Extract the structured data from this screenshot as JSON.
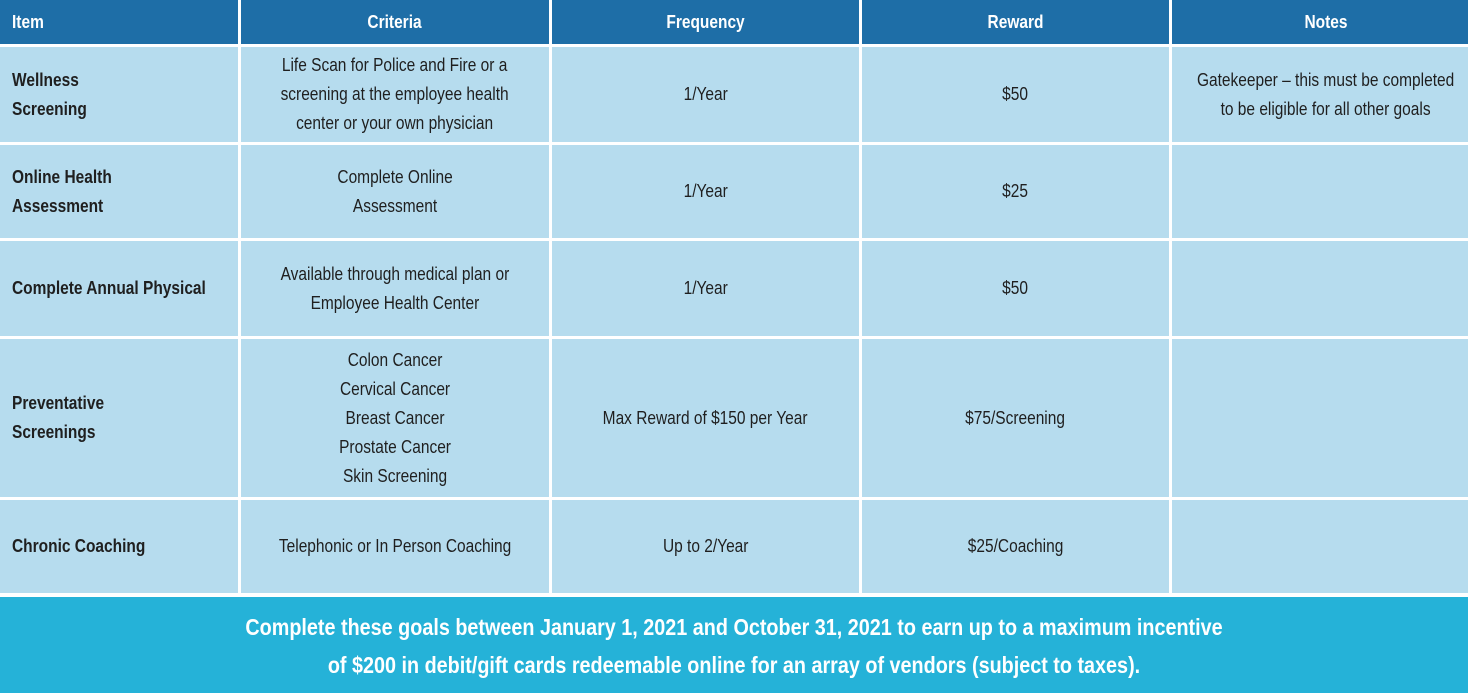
{
  "table": {
    "headers": [
      "Item",
      "Criteria",
      "Frequency",
      "Reward",
      "Notes"
    ],
    "rows": [
      {
        "item": "Wellness\nScreening",
        "criteria": "Life Scan for Police and Fire or a\nscreening at the employee health\ncenter or your own physician",
        "frequency": "1/Year",
        "reward": "$50",
        "notes": "Gatekeeper – this must be completed\nto be eligible for all other goals"
      },
      {
        "item": "Online Health Assessment",
        "criteria": "Complete Online\nAssessment",
        "frequency": "1/Year",
        "reward": "$25",
        "notes": ""
      },
      {
        "item": "Complete Annual Physical",
        "criteria": "Available through medical plan or\nEmployee Health Center",
        "frequency": "1/Year",
        "reward": "$50",
        "notes": ""
      },
      {
        "item": "Preventative\nScreenings",
        "criteria": "Colon Cancer\nCervical Cancer\nBreast Cancer\nProstate Cancer\nSkin Screening",
        "frequency": "Max Reward of $150 per Year",
        "reward": "$75/Screening",
        "notes": ""
      },
      {
        "item": "Chronic Coaching",
        "criteria": "Telephonic or In Person Coaching",
        "frequency": "Up to 2/Year",
        "reward": "$25/Coaching",
        "notes": ""
      }
    ]
  },
  "footer": {
    "text": "Complete these goals between January 1, 2021 and October 31, 2021 to earn up to a maximum incentive\nof $200 in debit/gift cards redeemable online for an array of vendors (subject to taxes)."
  },
  "colors": {
    "header_bg": "#1e6ea7",
    "cell_bg": "#b6dcee",
    "footer_bg": "#25b2d8"
  }
}
